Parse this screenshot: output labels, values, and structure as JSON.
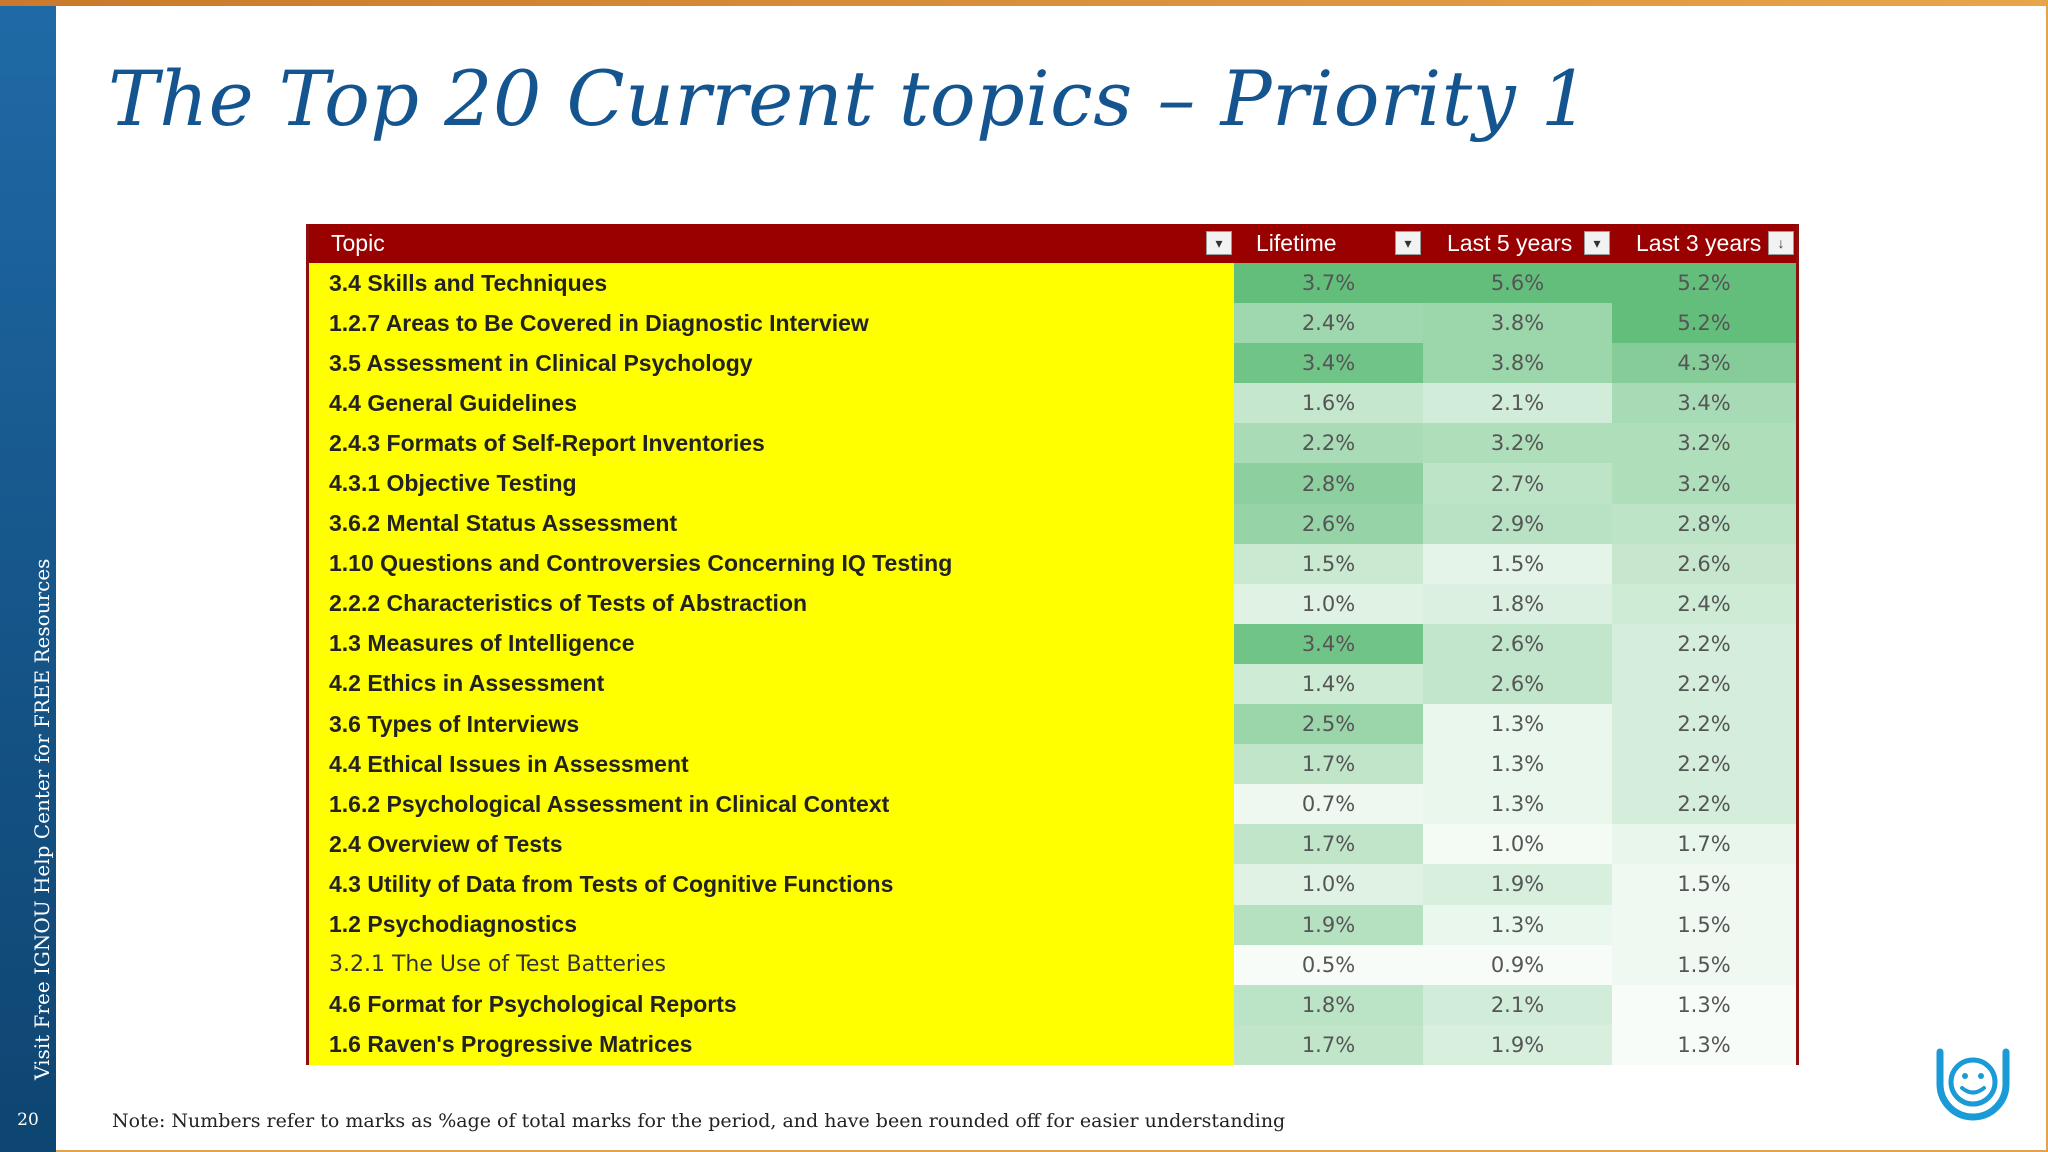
{
  "slide": {
    "title": "The Top 20 Current topics – Priority 1",
    "side_text": "Visit Free IGNOU Help Center for FREE Resources",
    "page_number": "20",
    "note": "Note: Numbers refer to marks as %age of total marks for the period, and have been rounded off for easier understanding",
    "logo_icon": "smiley-logo-icon"
  },
  "table": {
    "headers": [
      "Topic",
      "Lifetime",
      "Last 5 years",
      "Last 3 years"
    ],
    "rows": [
      {
        "topic": "3.4 Skills and Techniques",
        "lifetime": "3.7%",
        "last5": "5.6%",
        "last3": "5.2%",
        "bold": true
      },
      {
        "topic": "1.2.7 Areas to Be Covered in Diagnostic Interview",
        "lifetime": "2.4%",
        "last5": "3.8%",
        "last3": "5.2%",
        "bold": true
      },
      {
        "topic": "3.5 Assessment in Clinical Psychology",
        "lifetime": "3.4%",
        "last5": "3.8%",
        "last3": "4.3%",
        "bold": true
      },
      {
        "topic": "4.4 General Guidelines",
        "lifetime": "1.6%",
        "last5": "2.1%",
        "last3": "3.4%",
        "bold": true
      },
      {
        "topic": "2.4.3 Formats of Self-Report Inventories",
        "lifetime": "2.2%",
        "last5": "3.2%",
        "last3": "3.2%",
        "bold": true
      },
      {
        "topic": "4.3.1 Objective Testing",
        "lifetime": "2.8%",
        "last5": "2.7%",
        "last3": "3.2%",
        "bold": true
      },
      {
        "topic": "3.6.2 Mental Status Assessment",
        "lifetime": "2.6%",
        "last5": "2.9%",
        "last3": "2.8%",
        "bold": true
      },
      {
        "topic": "1.10 Questions and Controversies Concerning IQ Testing",
        "lifetime": "1.5%",
        "last5": "1.5%",
        "last3": "2.6%",
        "bold": true
      },
      {
        "topic": "2.2.2 Characteristics of Tests of Abstraction",
        "lifetime": "1.0%",
        "last5": "1.8%",
        "last3": "2.4%",
        "bold": true
      },
      {
        "topic": "1.3 Measures of Intelligence",
        "lifetime": "3.4%",
        "last5": "2.6%",
        "last3": "2.2%",
        "bold": true
      },
      {
        "topic": "4.2 Ethics in Assessment",
        "lifetime": "1.4%",
        "last5": "2.6%",
        "last3": "2.2%",
        "bold": true
      },
      {
        "topic": "3.6 Types of Interviews",
        "lifetime": "2.5%",
        "last5": "1.3%",
        "last3": "2.2%",
        "bold": true
      },
      {
        "topic": "4.4 Ethical Issues in Assessment",
        "lifetime": "1.7%",
        "last5": "1.3%",
        "last3": "2.2%",
        "bold": true
      },
      {
        "topic": "1.6.2 Psychological Assessment in Clinical Context",
        "lifetime": "0.7%",
        "last5": "1.3%",
        "last3": "2.2%",
        "bold": true
      },
      {
        "topic": "2.4 Overview of Tests",
        "lifetime": "1.7%",
        "last5": "1.0%",
        "last3": "1.7%",
        "bold": true
      },
      {
        "topic": "4.3 Utility of Data from Tests of Cognitive Functions",
        "lifetime": "1.0%",
        "last5": "1.9%",
        "last3": "1.5%",
        "bold": true
      },
      {
        "topic": "1.2 Psychodiagnostics",
        "lifetime": "1.9%",
        "last5": "1.3%",
        "last3": "1.5%",
        "bold": true
      },
      {
        "topic": "3.2.1 The Use of Test Batteries",
        "lifetime": "0.5%",
        "last5": "0.9%",
        "last3": "1.5%",
        "bold": false
      },
      {
        "topic": "4.6 Format for Psychological Reports",
        "lifetime": "1.8%",
        "last5": "2.1%",
        "last3": "1.3%",
        "bold": true
      },
      {
        "topic": "1.6 Raven's Progressive Matrices",
        "lifetime": "1.7%",
        "last5": "1.9%",
        "last3": "1.3%",
        "bold": true
      }
    ]
  },
  "colors": {
    "title": "#14558f",
    "header_bg": "#990000",
    "topic_bg": "#ffff00",
    "heat_high": "#63be7b",
    "heat_low": "#f7fcf8"
  }
}
